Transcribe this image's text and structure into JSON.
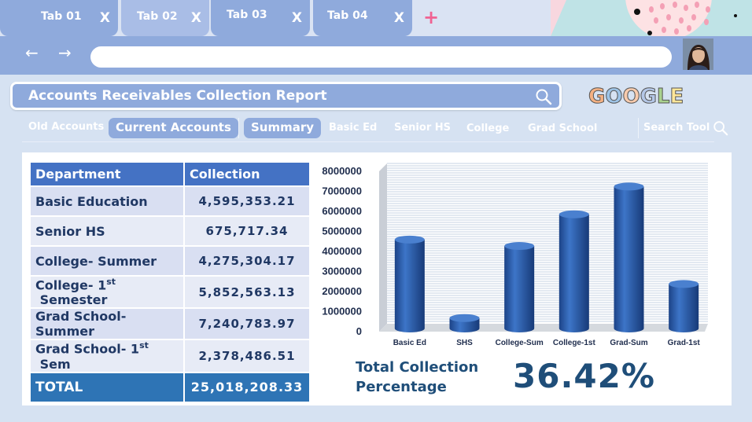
{
  "tabs": [
    {
      "label": "Tab 01",
      "close": "X"
    },
    {
      "label": "Tab 02",
      "close": "X"
    },
    {
      "label": "Tab 03",
      "close": "X"
    },
    {
      "label": "Tab 04",
      "close": "X"
    }
  ],
  "tab_add": "+",
  "nav": {
    "back": "←",
    "forward": "→"
  },
  "report": {
    "title": "Accounts Receivables Collection Report"
  },
  "logo": {
    "letters": [
      "G",
      "O",
      "O",
      "G",
      "L",
      "E"
    ],
    "colors": [
      "#f4b183",
      "#9dc3e6",
      "#f8cbad",
      "#b4c7e7",
      "#a9d18e",
      "#ffe699"
    ]
  },
  "menu": {
    "old_accounts": "Old Accounts",
    "current_accounts": "Current Accounts",
    "summary": "Summary",
    "basic_ed": "Basic Ed",
    "senior_hs": "Senior HS",
    "college": "College",
    "grad_school": "Grad School",
    "search_tool": "Search Tool"
  },
  "table": {
    "headers": [
      "Department",
      "Collection"
    ],
    "rows": [
      {
        "dept": "Basic Education",
        "sup": "",
        "suffix": "",
        "value": "4,595,353.21"
      },
      {
        "dept": "Senior HS",
        "sup": "",
        "suffix": "",
        "value": "675,717.34"
      },
      {
        "dept": "College- Summer",
        "sup": "",
        "suffix": "",
        "value": "4,275,304.17"
      },
      {
        "dept": "College- 1",
        "sup": "st",
        "suffix": " Semester",
        "value": "5,852,563.13"
      },
      {
        "dept": "Grad School-Summer",
        "sup": "",
        "suffix": "",
        "value": "7,240,783.97"
      },
      {
        "dept": "Grad School- 1",
        "sup": "st",
        "suffix": " Sem",
        "value": "2,378,486.51"
      }
    ],
    "total_label": "TOTAL",
    "total_value": "25,018,208.33"
  },
  "chart_data": {
    "type": "bar",
    "categories": [
      "Basic Ed",
      "SHS",
      "College-Sum",
      "College-1st",
      "Grad-Sum",
      "Grad-1st"
    ],
    "values": [
      4595353.21,
      675717.34,
      4275304.17,
      5852563.13,
      7240783.97,
      2378486.51
    ],
    "ylim": [
      0,
      8000000
    ],
    "yticks": [
      "8000000",
      "7000000",
      "6000000",
      "5000000",
      "4000000",
      "3000000",
      "2000000",
      "1000000",
      "0"
    ],
    "title": "",
    "xlabel": "",
    "ylabel": "",
    "grid": true,
    "bar_color": "#2e5ea8"
  },
  "summary": {
    "label_line1": "Total Collection",
    "label_line2": "Percentage",
    "percentage": "36.42%"
  }
}
